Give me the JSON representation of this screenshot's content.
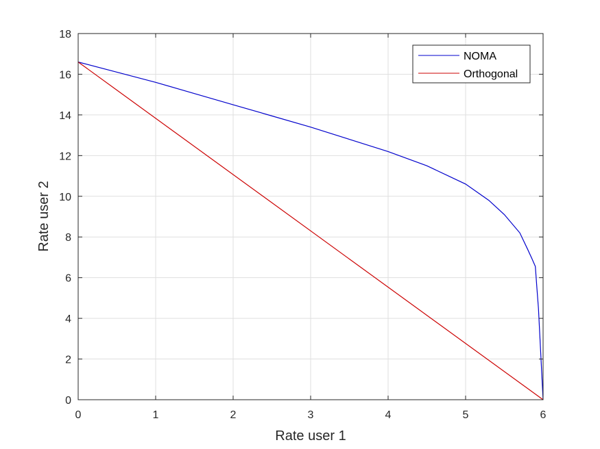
{
  "chart_data": {
    "type": "line",
    "xlabel": "Rate user 1",
    "ylabel": "Rate user 2",
    "xlim": [
      0,
      6
    ],
    "ylim": [
      0,
      18
    ],
    "xticks": [
      "0",
      "1",
      "2",
      "3",
      "4",
      "5",
      "6"
    ],
    "yticks": [
      "0",
      "2",
      "4",
      "6",
      "8",
      "10",
      "12",
      "14",
      "16",
      "18"
    ],
    "grid": true,
    "legend_position": "top-right",
    "series": [
      {
        "name": "NOMA",
        "color": "#0000cc",
        "x": [
          0,
          0.5,
          1,
          1.5,
          2,
          2.5,
          3,
          3.5,
          4,
          4.5,
          5,
          5.3,
          5.5,
          5.7,
          5.8,
          5.86,
          5.9,
          5.92,
          5.94,
          5.96,
          5.98,
          6.0
        ],
        "y": [
          16.6,
          16.1,
          15.6,
          15.05,
          14.5,
          13.95,
          13.4,
          12.8,
          12.2,
          11.5,
          10.6,
          9.8,
          9.1,
          8.2,
          7.4,
          6.9,
          6.55,
          5.5,
          4.5,
          3.0,
          1.5,
          0
        ]
      },
      {
        "name": "Orthogonal",
        "color": "#cc0000",
        "x": [
          0,
          6
        ],
        "y": [
          16.6,
          0
        ]
      }
    ]
  }
}
